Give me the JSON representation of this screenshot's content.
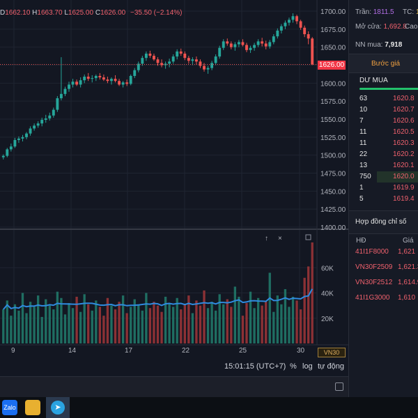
{
  "ohlc": {
    "open_tail": "D",
    "open": "1662.10",
    "high_label": "H",
    "high": "1663.70",
    "low_label": "L",
    "low": "1625.00",
    "close_label": "C",
    "close": "1626.00",
    "change": "−35.50 (−2.14%)"
  },
  "price_axis": [
    "1700.00",
    "1675.00",
    "1650.00",
    "1625.00",
    "1600.00",
    "1575.00",
    "1550.00",
    "1525.00",
    "1500.00",
    "1475.00",
    "1450.00",
    "1425.00",
    "1400.00"
  ],
  "current_price": "1626.00",
  "volume_axis": [
    "60K",
    "40K",
    "20K"
  ],
  "time_axis": [
    "9",
    "14",
    "17",
    "22",
    "25",
    "30"
  ],
  "symbol_tag": "VN30",
  "bottom": {
    "clock": "15:01:15 (UTC+7)",
    "percent": "%",
    "log": "log",
    "auto": "tự động"
  },
  "chart_data": {
    "type": "candlestick",
    "ylim": [
      1400,
      1700
    ],
    "candles": [
      [
        1497,
        1501,
        1494,
        1499
      ],
      [
        1499,
        1510,
        1497,
        1508
      ],
      [
        1508,
        1516,
        1505,
        1512
      ],
      [
        1512,
        1524,
        1510,
        1521
      ],
      [
        1521,
        1526,
        1517,
        1523
      ],
      [
        1523,
        1528,
        1519,
        1525
      ],
      [
        1525,
        1532,
        1522,
        1530
      ],
      [
        1530,
        1540,
        1527,
        1537
      ],
      [
        1537,
        1544,
        1534,
        1541
      ],
      [
        1541,
        1547,
        1538,
        1544
      ],
      [
        1544,
        1552,
        1540,
        1549
      ],
      [
        1549,
        1556,
        1545,
        1551
      ],
      [
        1551,
        1559,
        1548,
        1555
      ],
      [
        1555,
        1566,
        1552,
        1563
      ],
      [
        1563,
        1582,
        1560,
        1579
      ],
      [
        1579,
        1636,
        1576,
        1585
      ],
      [
        1585,
        1595,
        1582,
        1592
      ],
      [
        1592,
        1602,
        1588,
        1598
      ],
      [
        1598,
        1606,
        1594,
        1602
      ],
      [
        1602,
        1605,
        1596,
        1598
      ],
      [
        1598,
        1608,
        1594,
        1604
      ],
      [
        1604,
        1612,
        1600,
        1609
      ],
      [
        1609,
        1614,
        1603,
        1606
      ],
      [
        1606,
        1611,
        1601,
        1607
      ],
      [
        1607,
        1612,
        1603,
        1610
      ],
      [
        1610,
        1614,
        1605,
        1608
      ],
      [
        1608,
        1612,
        1603,
        1605
      ],
      [
        1605,
        1609,
        1600,
        1603
      ],
      [
        1603,
        1608,
        1598,
        1606
      ],
      [
        1606,
        1611,
        1601,
        1603
      ],
      [
        1603,
        1606,
        1596,
        1598
      ],
      [
        1598,
        1603,
        1594,
        1601
      ],
      [
        1601,
        1605,
        1596,
        1599
      ],
      [
        1599,
        1612,
        1597,
        1610
      ],
      [
        1610,
        1621,
        1607,
        1618
      ],
      [
        1618,
        1630,
        1615,
        1627
      ],
      [
        1627,
        1638,
        1624,
        1635
      ],
      [
        1635,
        1644,
        1631,
        1641
      ],
      [
        1641,
        1645,
        1635,
        1638
      ],
      [
        1638,
        1641,
        1631,
        1633
      ],
      [
        1633,
        1636,
        1624,
        1628
      ],
      [
        1628,
        1633,
        1622,
        1625
      ],
      [
        1625,
        1630,
        1620,
        1627
      ],
      [
        1627,
        1634,
        1622,
        1630
      ],
      [
        1630,
        1640,
        1627,
        1637
      ],
      [
        1637,
        1647,
        1633,
        1644
      ],
      [
        1644,
        1648,
        1638,
        1641
      ],
      [
        1641,
        1644,
        1632,
        1635
      ],
      [
        1635,
        1638,
        1627,
        1631
      ],
      [
        1631,
        1636,
        1625,
        1633
      ],
      [
        1633,
        1637,
        1626,
        1630
      ],
      [
        1630,
        1633,
        1621,
        1624
      ],
      [
        1624,
        1628,
        1616,
        1619
      ],
      [
        1619,
        1624,
        1613,
        1621
      ],
      [
        1621,
        1631,
        1618,
        1628
      ],
      [
        1628,
        1640,
        1625,
        1637
      ],
      [
        1637,
        1652,
        1634,
        1649
      ],
      [
        1649,
        1661,
        1646,
        1658
      ],
      [
        1658,
        1662,
        1652,
        1655
      ],
      [
        1655,
        1658,
        1647,
        1650
      ],
      [
        1650,
        1657,
        1645,
        1654
      ],
      [
        1654,
        1660,
        1650,
        1657
      ],
      [
        1657,
        1661,
        1651,
        1653
      ],
      [
        1653,
        1656,
        1643,
        1646
      ],
      [
        1646,
        1652,
        1642,
        1649
      ],
      [
        1649,
        1656,
        1645,
        1653
      ],
      [
        1653,
        1661,
        1650,
        1658
      ],
      [
        1658,
        1663,
        1651,
        1655
      ],
      [
        1655,
        1659,
        1647,
        1651
      ],
      [
        1651,
        1660,
        1648,
        1657
      ],
      [
        1657,
        1668,
        1654,
        1665
      ],
      [
        1665,
        1676,
        1662,
        1673
      ],
      [
        1673,
        1682,
        1669,
        1679
      ],
      [
        1679,
        1687,
        1675,
        1684
      ],
      [
        1684,
        1691,
        1680,
        1688
      ],
      [
        1688,
        1697,
        1684,
        1693
      ],
      [
        1693,
        1695,
        1682,
        1686
      ],
      [
        1686,
        1688,
        1674,
        1677
      ],
      [
        1677,
        1680,
        1664,
        1668
      ],
      [
        1668,
        1672,
        1654,
        1662
      ],
      [
        1662,
        1664,
        1625,
        1626
      ]
    ],
    "volumes": [
      27,
      34,
      22,
      31,
      26,
      40,
      24,
      33,
      29,
      38,
      21,
      35,
      30,
      27,
      41,
      36,
      23,
      32,
      28,
      37,
      25,
      39,
      31,
      26,
      34,
      29,
      22,
      36,
      30,
      27,
      33,
      38,
      24,
      29,
      35,
      31,
      26,
      40,
      28,
      33,
      30,
      25,
      37,
      32,
      29,
      36,
      27,
      31,
      38,
      24,
      34,
      30,
      42,
      28,
      33,
      26,
      39,
      31,
      35,
      29,
      45,
      37,
      22,
      32,
      41,
      28,
      36,
      30,
      33,
      56,
      25,
      38,
      31,
      43,
      29,
      37,
      34,
      27,
      52,
      61,
      80
    ]
  },
  "sidebar": {
    "tran_label": "Trần:",
    "tran_value": "1811.5",
    "tc_label": "TC:",
    "tc_value": "1",
    "mocua_label": "Mở cửa:",
    "mocua_value": "1,692.8",
    "cao_label": "Cao",
    "nn_label": "NN mua:",
    "nn_value": "7,918",
    "buoc_gia_tab": "Bước giá",
    "du_mua": "DƯ MUA",
    "orderbook": [
      {
        "vol": "63",
        "price": "1620.8"
      },
      {
        "vol": "10",
        "price": "1620.7"
      },
      {
        "vol": "7",
        "price": "1620.6"
      },
      {
        "vol": "11",
        "price": "1620.5"
      },
      {
        "vol": "11",
        "price": "1620.3"
      },
      {
        "vol": "22",
        "price": "1620.2"
      },
      {
        "vol": "13",
        "price": "1620.1"
      },
      {
        "vol": "750",
        "price": "1620.0"
      },
      {
        "vol": "1",
        "price": "1619.9"
      },
      {
        "vol": "5",
        "price": "1619.4"
      }
    ],
    "contracts_title": "Hợp đồng chỉ số",
    "col_hd": "HĐ",
    "col_gia": "Giá",
    "contracts": [
      {
        "code": "41I1F8000",
        "price": "1,621"
      },
      {
        "code": "VN30F2509",
        "price": "1,621.3"
      },
      {
        "code": "VN30F2512",
        "price": "1,614.9"
      },
      {
        "code": "41I1G3000",
        "price": "1,610"
      }
    ]
  },
  "taskbar": {
    "zalo": "Zalo"
  }
}
